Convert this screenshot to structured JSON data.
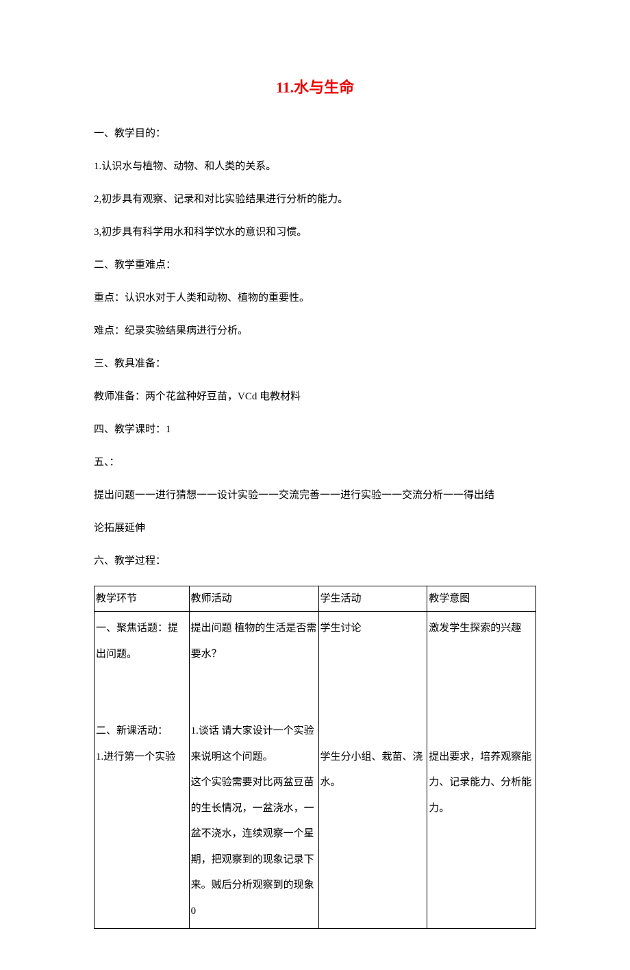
{
  "title": "11.水与生命",
  "sections": {
    "s1_heading": "一、教学目的：",
    "s1_item1": "1.认识水与植物、动物、和人类的关系。",
    "s1_item2": "2,初步具有观察、记录和对比实验结果进行分析的能力。",
    "s1_item3": "3,初步具有科学用水和科学饮水的意识和习惯。",
    "s2_heading": "二、教学重难点：",
    "s2_item1": "重点：认识水对于人类和动物、植物的重要性。",
    "s2_item2": "难点：纪录实验结果病进行分析。",
    "s3_heading": "三、教具准备：",
    "s3_item1": "教师准备：两个花盆种好豆苗，VCd 电教材料",
    "s4_heading": "四、教学课时：1",
    "s5_heading": "五、：",
    "s5_item1": "提出问题一一进行猜想一一设计实验一一交流完善一一进行实验一一交流分析一一得出结",
    "s5_item2": "论拓展延伸",
    "s6_heading": "六、教学过程："
  },
  "table": {
    "headers": {
      "c1": "教学环节",
      "c2": "教师活动",
      "c3": "学生活动",
      "c4": "教学意图"
    },
    "row1": {
      "c1": "一、聚焦话题：提出问题。\n\n二、新课活动：\n1.进行第一个实验",
      "c2": "提出问题 植物的生活是否需要水？\n\n1.谈话 请大家设计一个实验来说明这个问题。\n这个实验需要对比两盆豆苗的生长情况，一盆浇水，一盆不浇水，连续观察一个星期，把观察到的现象记录下来。贼后分析观察到的现象0",
      "c3": "学生讨论\n\n\n学生分小组、栽苗、浇水。",
      "c4": "激发学生探索的兴趣\n\n\n提出要求，培养观察能力、记录能力、分析能力。"
    }
  }
}
